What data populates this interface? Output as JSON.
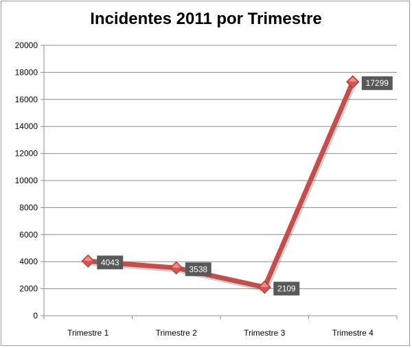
{
  "chart_data": {
    "type": "line",
    "title": "Incidentes 2011 por Trimestre",
    "categories": [
      "Trimestre 1",
      "Trimestre 2",
      "Trimestre 3",
      "Trimestre 4"
    ],
    "series": [
      {
        "values": [
          4043,
          3538,
          2109,
          17299
        ]
      }
    ],
    "data_labels": [
      "4043",
      "3538",
      "2109",
      "17299"
    ],
    "ylim": [
      0,
      20000
    ],
    "yticks": [
      0,
      2000,
      4000,
      6000,
      8000,
      10000,
      12000,
      14000,
      16000,
      18000,
      20000
    ],
    "grid": true,
    "legend": "none",
    "colors": {
      "line": "#c0504d",
      "marker": "#d9534f",
      "label_bg": "#595959",
      "grid": "#8c8c8c"
    }
  }
}
